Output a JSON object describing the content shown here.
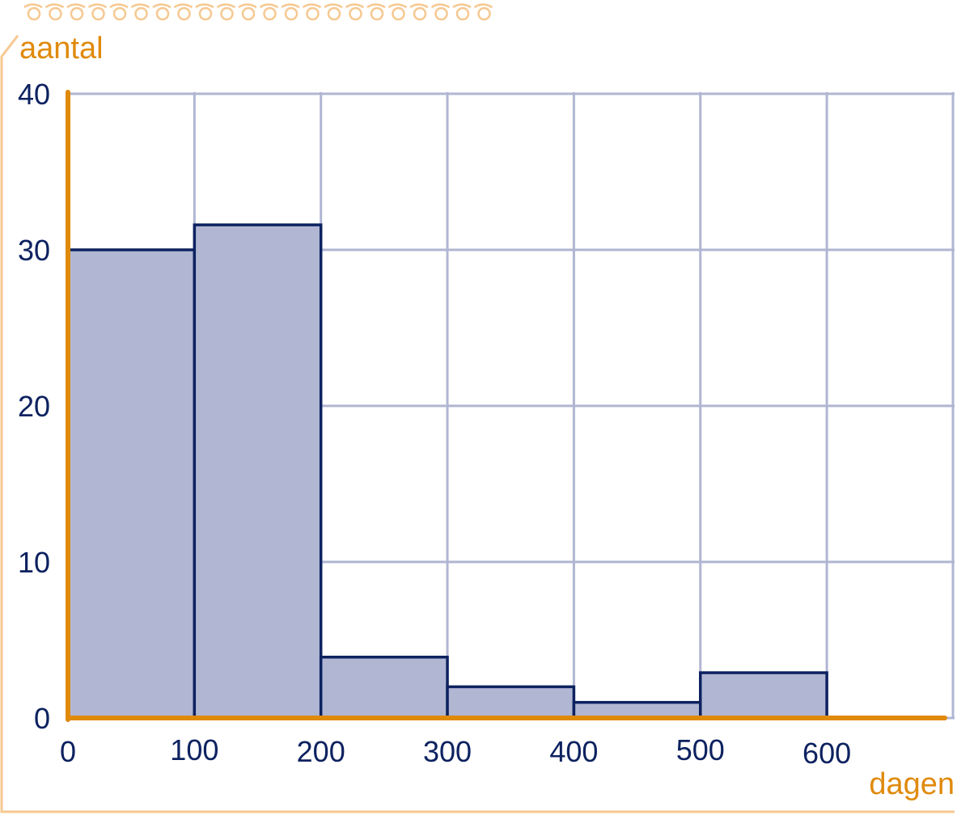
{
  "colors": {
    "grid": "#b0b6d2",
    "bar_fill": "#b1b7d3",
    "bar_stroke": "#0d2260",
    "axis": "#e08a0c",
    "tick_text": "#0d2260",
    "axis_title": "#e08a0c",
    "frame": "#f6c890"
  },
  "chart_data": {
    "type": "bar",
    "title": "",
    "xlabel": "dagen",
    "ylabel": "aantal",
    "xlim": [
      0,
      700
    ],
    "ylim": [
      0,
      40
    ],
    "grid": true,
    "x_ticks": [
      0,
      100,
      200,
      300,
      400,
      500,
      600
    ],
    "y_ticks": [
      0,
      10,
      20,
      30,
      40
    ],
    "bins": [
      {
        "from": 0,
        "to": 100,
        "value": 30
      },
      {
        "from": 100,
        "to": 200,
        "value": 31.6
      },
      {
        "from": 200,
        "to": 300,
        "value": 3.9
      },
      {
        "from": 300,
        "to": 400,
        "value": 2
      },
      {
        "from": 400,
        "to": 500,
        "value": 1
      },
      {
        "from": 500,
        "to": 600,
        "value": 2.9
      }
    ]
  }
}
